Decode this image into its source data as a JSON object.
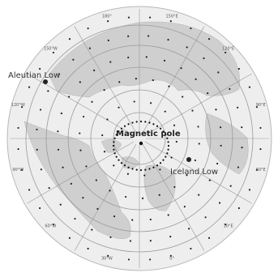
{
  "labels": {
    "aleutian": "Aleutian Low",
    "iceland": "Iceland Low",
    "pole": "Magnetic pole"
  },
  "longitude_ticks": [
    "150°E",
    "120°E",
    "90°E",
    "60°E",
    "30°E",
    "0°",
    "30°W",
    "60°W",
    "90°W",
    "120°W",
    "150°W",
    "180°"
  ],
  "colors": {
    "ocean": "#eeeeee",
    "land": "#c9c9c9",
    "grid": "#9a9a9a",
    "dots": "#222222"
  }
}
